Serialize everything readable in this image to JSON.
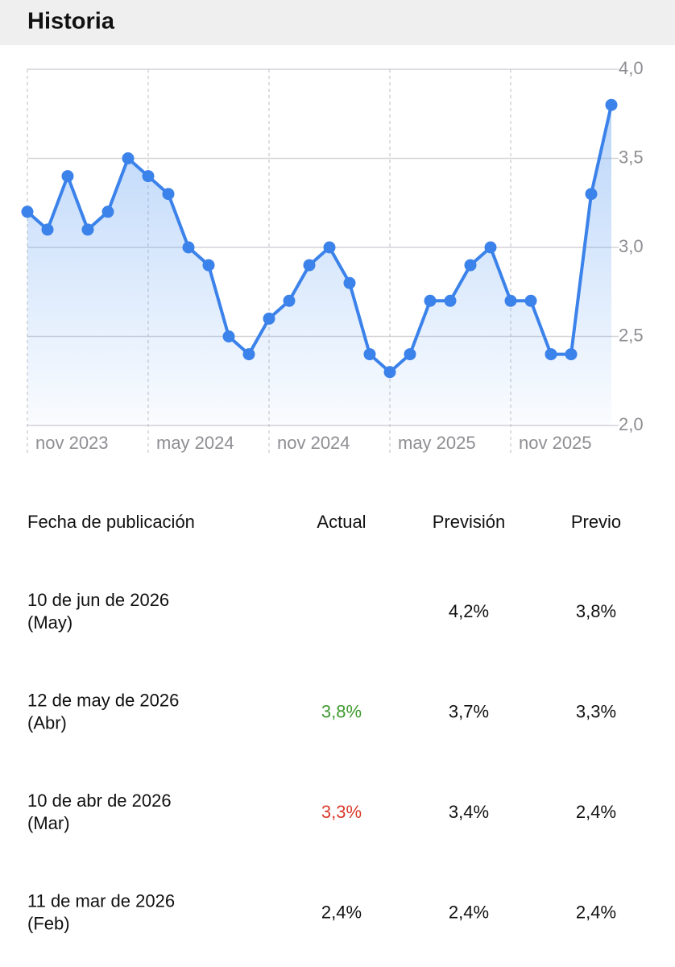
{
  "header": {
    "title": "Historia"
  },
  "chart_data": {
    "type": "line",
    "categories": [
      "nov 2023",
      null,
      null,
      null,
      null,
      null,
      "may 2024",
      null,
      null,
      null,
      null,
      null,
      "nov 2024",
      null,
      null,
      null,
      null,
      null,
      "may 2025",
      null,
      null,
      null,
      null,
      null,
      "nov 2025",
      null,
      null,
      null,
      null,
      null
    ],
    "series": [
      {
        "color": "#3b82ea",
        "values": [
          3.2,
          3.1,
          3.4,
          3.1,
          3.2,
          3.5,
          3.4,
          3.3,
          3.0,
          2.9,
          2.5,
          2.4,
          2.6,
          2.7,
          2.9,
          3.0,
          2.8,
          2.4,
          2.3,
          2.4,
          2.7,
          2.7,
          2.9,
          3.0,
          2.7,
          2.7,
          2.4,
          2.4,
          3.3,
          3.8
        ]
      }
    ],
    "ylim": [
      2.0,
      4.0
    ],
    "yticks": [
      {
        "value": 2.0,
        "label": "2,0"
      },
      {
        "value": 2.5,
        "label": "2,5"
      },
      {
        "value": 3.0,
        "label": "3,0"
      },
      {
        "value": 3.5,
        "label": "3,5"
      },
      {
        "value": 4.0,
        "label": "4,0"
      }
    ],
    "grid": true
  },
  "table": {
    "columns": [
      "Fecha de publicación",
      "Actual",
      "Previsión",
      "Previo"
    ],
    "rows": [
      {
        "date": "10 de jun de 2026",
        "period": "(May)",
        "actual": null,
        "forecast": "4,2%",
        "previous": "3,8%"
      },
      {
        "date": "12 de may de 2026",
        "period": "(Abr)",
        "actual": "3,8%",
        "actual_color": "#3f9a2e",
        "forecast": "3,7%",
        "previous": "3,3%"
      },
      {
        "date": "10 de abr de 2026",
        "period": "(Mar)",
        "actual": "3,3%",
        "actual_color": "#d93a2b",
        "forecast": "3,4%",
        "previous": "2,4%"
      },
      {
        "date": "11 de mar de 2026",
        "period": "(Feb)",
        "actual": "2,4%",
        "forecast": "2,4%",
        "previous": "2,4%"
      }
    ]
  }
}
